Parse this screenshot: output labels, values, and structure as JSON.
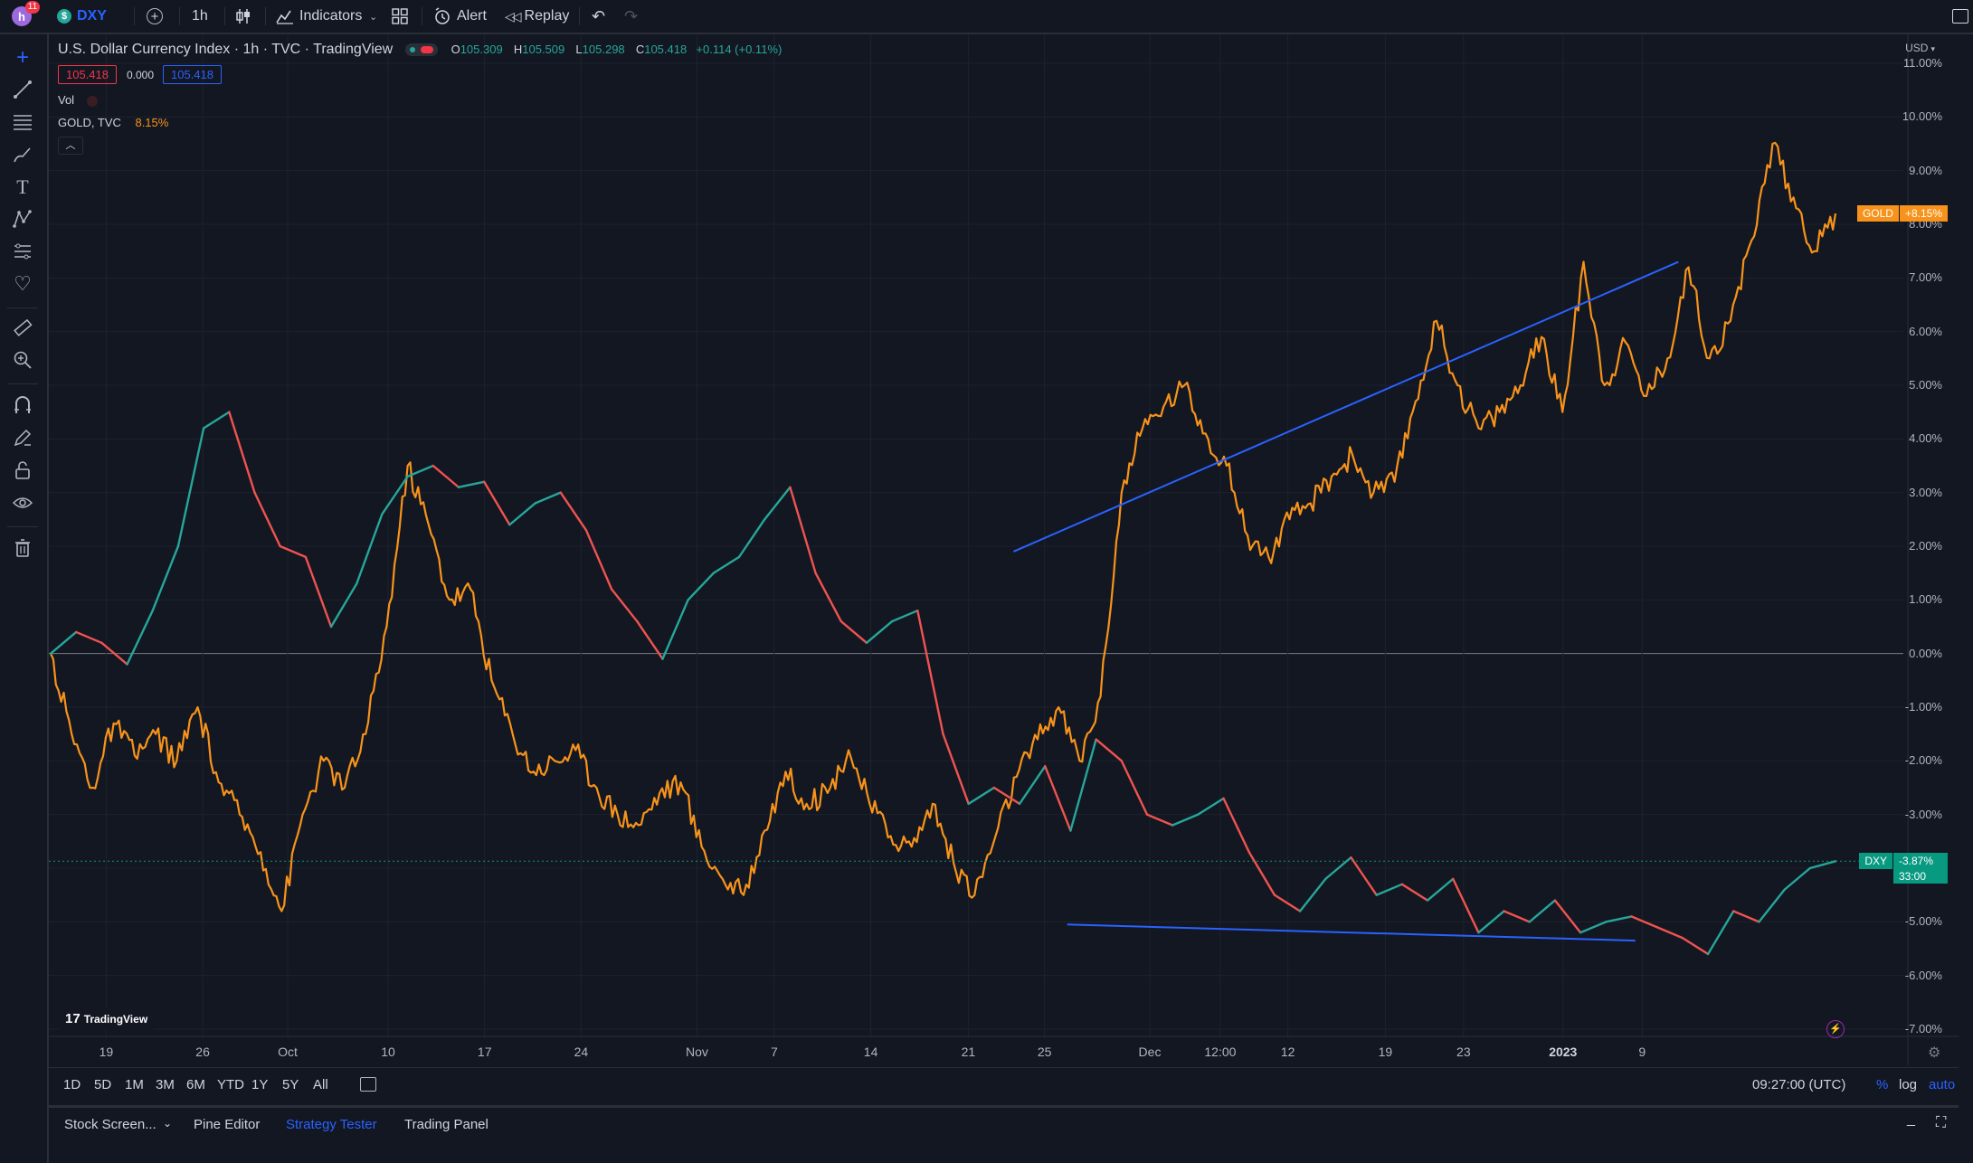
{
  "topbar": {
    "avatar_badge": "11",
    "symbol": "DXY",
    "interval": "1h",
    "indicators_label": "Indicators",
    "alert_label": "Alert",
    "replay_label": "Replay",
    "icons": [
      "plus-circle-icon",
      "candles-icon",
      "indicators-icon",
      "layout-grid-icon",
      "alert-clock-icon",
      "replay-icon",
      "undo-icon",
      "redo-icon",
      "fullscreen-icon"
    ]
  },
  "legend": {
    "title": "U.S. Dollar Currency Index · 1h · TVC · TradingView",
    "o_label": "O",
    "o_value": "105.309",
    "h_label": "H",
    "h_value": "105.509",
    "l_label": "L",
    "l_value": "105.298",
    "c_label": "C",
    "c_value": "105.418",
    "change": "+0.114 (+0.11%)",
    "bid": "105.418",
    "spread": "0.000",
    "ask": "105.418",
    "vol_label": "Vol",
    "gold_label": "GOLD, TVC",
    "gold_value": "8.15%"
  },
  "colors": {
    "background": "#131722",
    "gold": "#f7931a",
    "dxy_up": "#26a69a",
    "dxy_down": "#ef5350",
    "trendline": "#2962ff",
    "accent": "#2962ff"
  },
  "chart_data": {
    "type": "line",
    "scale": "percent",
    "ylim": [
      -7.0,
      11.0
    ],
    "y_ticks": [
      "11.00%",
      "10.00%",
      "9.00%",
      "8.00%",
      "7.00%",
      "6.00%",
      "5.00%",
      "4.00%",
      "3.00%",
      "2.00%",
      "1.00%",
      "0.00%",
      "-1.00%",
      "-2.00%",
      "-3.00%",
      "-4.00%",
      "-5.00%",
      "-6.00%",
      "-7.00%"
    ],
    "x_ticks": [
      "19",
      "26",
      "Oct",
      "10",
      "17",
      "24",
      "Nov",
      "7",
      "14",
      "21",
      "25",
      "Dec",
      "12:00",
      "12",
      "19",
      "23",
      "2023",
      "9"
    ],
    "currency_label": "USD",
    "series": [
      {
        "name": "GOLD",
        "last_label": "+8.15%",
        "values": [
          0.0,
          -1.5,
          -2.5,
          -1.3,
          -1.9,
          -1.5,
          -2.0,
          -1.0,
          -2.4,
          -3.0,
          -3.7,
          -4.8,
          -3.0,
          -2.0,
          -2.5,
          -1.5,
          0.5,
          3.5,
          2.4,
          1.0,
          1.2,
          -0.5,
          -1.5,
          -2.2,
          -2.0,
          -1.8,
          -2.5,
          -3.0,
          -3.2,
          -2.6,
          -2.4,
          -3.6,
          -4.2,
          -4.5,
          -3.3,
          -2.2,
          -2.8,
          -2.6,
          -1.8,
          -2.8,
          -3.4,
          -3.6,
          -2.8,
          -3.9,
          -4.5,
          -3.4,
          -2.3,
          -1.6,
          -1.0,
          -2.0,
          -0.8,
          3.0,
          4.2,
          4.6,
          5.0,
          4.1,
          3.5,
          2.2,
          1.8,
          2.5,
          2.8,
          3.3,
          3.7,
          3.0,
          3.2,
          4.7,
          6.2,
          5.0,
          4.2,
          4.5,
          5.0,
          5.9,
          4.5,
          7.3,
          5.0,
          5.8,
          4.8,
          5.5,
          7.2,
          5.5,
          6.2,
          7.7,
          9.5,
          8.5,
          7.5,
          8.2
        ],
        "range": [
          -4.8,
          9.6
        ]
      },
      {
        "name": "DXY",
        "last_label": "-3.87%",
        "countdown": "33:00",
        "values": [
          0.0,
          0.4,
          0.2,
          -0.2,
          0.8,
          2.0,
          4.2,
          4.5,
          3.0,
          2.0,
          1.8,
          0.5,
          1.3,
          2.6,
          3.3,
          3.5,
          3.1,
          3.2,
          2.4,
          2.8,
          3.0,
          2.3,
          1.2,
          0.6,
          -0.1,
          1.0,
          1.5,
          1.8,
          2.5,
          3.1,
          1.5,
          0.6,
          0.2,
          0.6,
          0.8,
          -1.5,
          -2.8,
          -2.5,
          -2.8,
          -2.1,
          -3.3,
          -1.6,
          -2.0,
          -3.0,
          -3.2,
          -3.0,
          -2.7,
          -3.7,
          -4.5,
          -4.8,
          -4.2,
          -3.8,
          -4.5,
          -4.3,
          -4.6,
          -4.2,
          -5.2,
          -4.8,
          -5.0,
          -4.6,
          -5.2,
          -5.0,
          -4.9,
          -5.1,
          -5.3,
          -5.6,
          -4.8,
          -5.0,
          -4.4,
          -4.0,
          -3.87
        ],
        "range": [
          -5.7,
          4.6
        ]
      }
    ],
    "trendlines": [
      {
        "series": "GOLD",
        "from": [
          "21",
          1.9
        ],
        "to": [
          "9",
          7.3
        ]
      },
      {
        "series": "DXY",
        "from": [
          "25",
          -5.05
        ],
        "to": [
          "2023",
          -5.35
        ]
      }
    ]
  },
  "bottombar": {
    "ranges": [
      "1D",
      "5D",
      "1M",
      "3M",
      "6M",
      "YTD",
      "1Y",
      "5Y",
      "All"
    ],
    "time": "09:27:00 (UTC)",
    "percent_label": "%",
    "log_label": "log",
    "auto_label": "auto"
  },
  "panelbar": {
    "tabs": [
      "Stock Screen...",
      "Pine Editor",
      "Strategy Tester",
      "Trading Panel"
    ],
    "active_tab": "Strategy Tester"
  },
  "watermark": "TradingView"
}
